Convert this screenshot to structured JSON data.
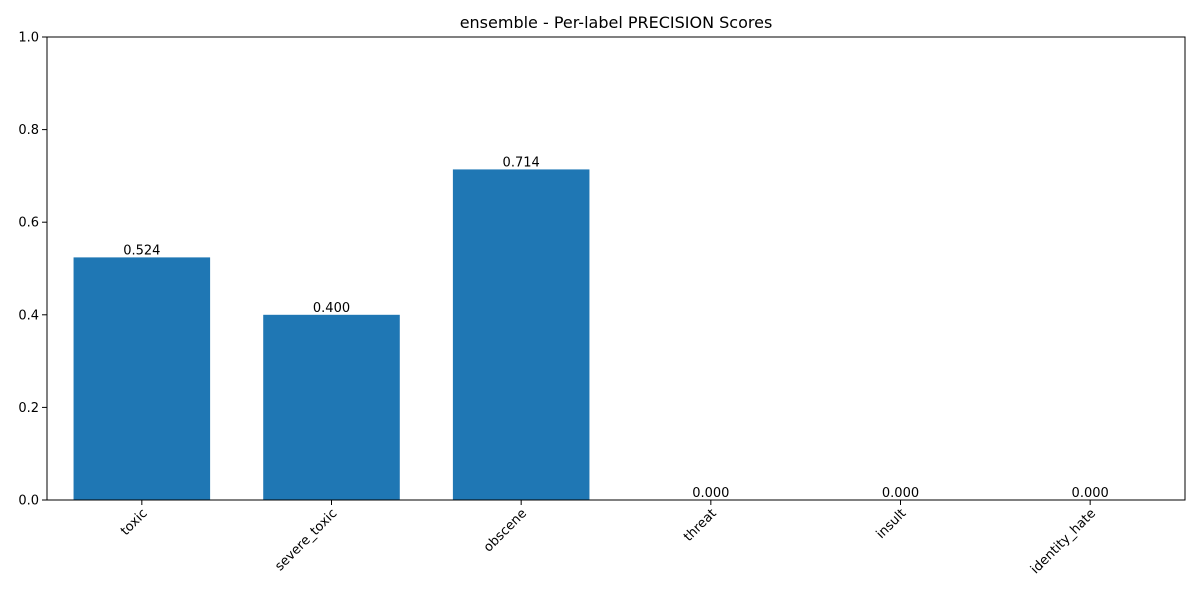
{
  "chart_data": {
    "type": "bar",
    "title": "ensemble - Per-label PRECISION Scores",
    "xlabel": "",
    "ylabel": "",
    "categories": [
      "toxic",
      "severe_toxic",
      "obscene",
      "threat",
      "insult",
      "identity_hate"
    ],
    "values": [
      0.524,
      0.4,
      0.714,
      0.0,
      0.0,
      0.0
    ],
    "value_labels": [
      "0.524",
      "0.400",
      "0.714",
      "0.000",
      "0.000",
      "0.000"
    ],
    "ylim": [
      0,
      1
    ],
    "yticks": [
      0.0,
      0.2,
      0.4,
      0.6,
      0.8,
      1.0
    ],
    "ytick_labels": [
      "0.0",
      "0.2",
      "0.4",
      "0.6",
      "0.8",
      "1.0"
    ],
    "xtick_rotation": 45,
    "grid": false,
    "legend": false,
    "bar_color": "#1f77b4"
  }
}
